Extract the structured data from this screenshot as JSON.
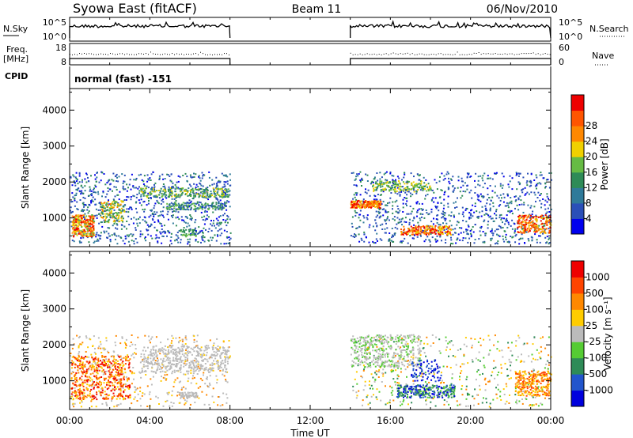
{
  "header": {
    "station": "Syowa East (fitACF)",
    "beam": "Beam 11",
    "date": "06/Nov/2010"
  },
  "panels": {
    "nsky": {
      "left_label": "N.Sky",
      "left_ticks": [
        "10^5",
        "10^0"
      ],
      "right_label": "N.Search",
      "right_ticks": [
        "10^5",
        "10^0"
      ]
    },
    "freq": {
      "left_label_1": "Freq.",
      "left_label_2": "[MHz]",
      "left_ticks": [
        "18",
        "8"
      ],
      "right_label": "Nave",
      "right_ticks": [
        "60",
        "0"
      ]
    },
    "cpid": {
      "label": "CPID",
      "value": "normal (fast) -151"
    }
  },
  "chart_data": [
    {
      "type": "heatmap",
      "name": "power",
      "ylabel": "Slant Range [km]",
      "yticks": [
        "1000",
        "2000",
        "3000",
        "4000"
      ],
      "ylim": [
        200,
        4600
      ],
      "colorbar": {
        "label": "Power [dB]",
        "ticks": [
          "4",
          "8",
          "12",
          "16",
          "20",
          "24",
          "28"
        ],
        "colors": [
          "#0000ee",
          "#2a4fb8",
          "#2f7a9a",
          "#2e8b57",
          "#66bb44",
          "#f0d000",
          "#ff8800",
          "#ff5500",
          "#ee0000"
        ]
      },
      "data_windows_UT": [
        [
          0,
          8
        ],
        [
          14,
          24
        ]
      ]
    },
    {
      "type": "heatmap",
      "name": "velocity",
      "ylabel": "Slant Range [km]",
      "yticks": [
        "1000",
        "2000",
        "3000",
        "4000"
      ],
      "ylim": [
        200,
        4600
      ],
      "colorbar": {
        "label": "Velocity [m s⁻¹]",
        "ticks": [
          "1000",
          "500",
          "100",
          "25",
          "-25",
          "-100",
          "-500",
          "-1000"
        ],
        "colors": [
          "#0000dd",
          "#2255cc",
          "#2e8b57",
          "#55cc33",
          "#bbbbbb",
          "#ffcc00",
          "#ff8800",
          "#ff4400",
          "#ee0000"
        ]
      },
      "data_windows_UT": [
        [
          0,
          8
        ],
        [
          14,
          24
        ]
      ]
    }
  ],
  "xaxis": {
    "ticks": [
      "00:00",
      "04:00",
      "08:00",
      "12:00",
      "16:00",
      "20:00",
      "00:00"
    ],
    "label": "Time UT"
  }
}
